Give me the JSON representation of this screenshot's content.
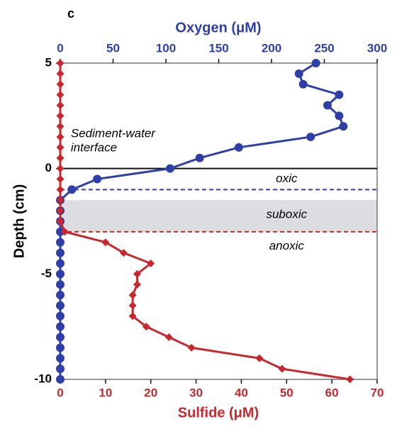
{
  "chart_data": {
    "type": "line",
    "panel_label": "c",
    "x2_title": "Oxygen (μM)",
    "x_title": "Sulfide (μM)",
    "y_title": "Depth (cm)",
    "xlim": [
      0,
      70
    ],
    "xticks": [
      0,
      10,
      20,
      30,
      40,
      50,
      60,
      70
    ],
    "x2lim": [
      0,
      300
    ],
    "x2ticks": [
      0,
      50,
      100,
      150,
      200,
      250,
      300
    ],
    "ylim": [
      -10,
      5
    ],
    "yticks": [
      5,
      0,
      -5,
      -10
    ],
    "series": [
      {
        "name": "Oxygen",
        "axis": "x2",
        "color": "#2e3fa8",
        "marker": "circle",
        "depth": [
          5,
          4.5,
          4,
          3.5,
          3,
          2.5,
          2,
          1.5,
          1,
          0.5,
          0,
          -0.5,
          -1,
          -1.5,
          -2,
          -2.5,
          -3,
          -3.5,
          -4,
          -4.5,
          -5,
          -5.5,
          -6,
          -6.5,
          -7,
          -7.5,
          -8,
          -8.5,
          -9,
          -9.5,
          -10
        ],
        "values": [
          242,
          226,
          230,
          264,
          253,
          264,
          268,
          237,
          169,
          132,
          104,
          35,
          11,
          0,
          0,
          0,
          0,
          0,
          0,
          0,
          0,
          0,
          0,
          0,
          0,
          0,
          0,
          0,
          0,
          0,
          0
        ]
      },
      {
        "name": "Sulfide",
        "axis": "x",
        "color": "#c8282d",
        "marker": "diamond",
        "depth": [
          5,
          4.5,
          4,
          3.5,
          3,
          2.5,
          2,
          1.5,
          1,
          0.5,
          0,
          -0.5,
          -1,
          -1.5,
          -2,
          -2.5,
          -3,
          -3.5,
          -4,
          -4.5,
          -5,
          -5.5,
          -6,
          -6.5,
          -7,
          -7.5,
          -8,
          -8.5,
          -9,
          -9.5,
          -10
        ],
        "values": [
          0,
          0,
          0,
          0,
          0,
          0,
          0,
          0,
          0,
          0,
          0,
          0,
          0,
          0,
          0,
          0,
          1,
          10,
          14,
          20,
          17,
          17,
          16,
          16,
          16,
          19,
          24,
          29,
          44,
          49,
          64
        ]
      }
    ],
    "band": {
      "from": -1.5,
      "to": -3,
      "color": "#dcdde1"
    },
    "hlines": [
      {
        "value": 0,
        "color": "#111111",
        "dashed": false
      },
      {
        "value": -1,
        "color": "#2e3fa8",
        "dashed": true
      },
      {
        "value": -3,
        "color": "#c8282d",
        "dashed": true
      }
    ],
    "annotations": [
      {
        "text": [
          "Sediment-water",
          "interface"
        ],
        "depth": 1.3,
        "x": 10
      },
      {
        "text": [
          "oxic"
        ],
        "depth": -0.5,
        "x": 50
      },
      {
        "text": [
          "suboxic"
        ],
        "depth": -2.2,
        "x": 50
      },
      {
        "text": [
          "anoxic"
        ],
        "depth": -3.7,
        "x": 50
      }
    ]
  }
}
